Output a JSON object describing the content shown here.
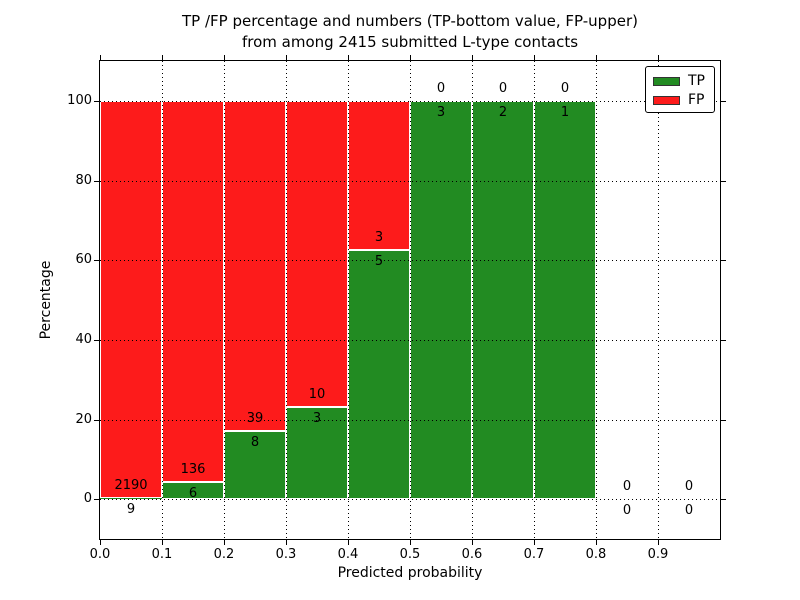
{
  "figure": {
    "title_line1": "TP /FP percentage and numbers (TP-bottom value, FP-upper)",
    "title_line2": "from among 2415 submitted L-type contacts"
  },
  "chart_data": {
    "type": "bar",
    "subtype": "stacked-percentage-histogram",
    "title": "TP /FP percentage and numbers (TP-bottom value, FP-upper) from among 2415 submitted L-type contacts",
    "xlabel": "Predicted probability",
    "ylabel": "Percentage",
    "xlim": [
      0.0,
      1.0
    ],
    "ylim": [
      -10,
      110
    ],
    "xticks": [
      0.0,
      0.1,
      0.2,
      0.3,
      0.4,
      0.5,
      0.6,
      0.7,
      0.8,
      0.9
    ],
    "xtick_labels": [
      "0.0",
      "0.1",
      "0.2",
      "0.3",
      "0.4",
      "0.5",
      "0.6",
      "0.7",
      "0.8",
      "0.9"
    ],
    "yticks": [
      0,
      20,
      40,
      60,
      80,
      100
    ],
    "ytick_labels": [
      "0",
      "20",
      "40",
      "60",
      "80",
      "100"
    ],
    "grid": "dotted",
    "bin_width": 0.1,
    "bin_starts": [
      0.0,
      0.1,
      0.2,
      0.3,
      0.4,
      0.5,
      0.6,
      0.7,
      0.8,
      0.9
    ],
    "series": [
      {
        "name": "TP",
        "color": "#228B22",
        "counts": [
          9,
          6,
          8,
          3,
          5,
          3,
          2,
          1,
          0,
          0
        ]
      },
      {
        "name": "FP",
        "color": "#FD1B1B",
        "counts": [
          2190,
          136,
          39,
          10,
          3,
          0,
          0,
          0,
          0,
          0
        ]
      }
    ],
    "tp_percent_of_bin": [
      0.4,
      4.2,
      17.0,
      23.1,
      62.5,
      100.0,
      100.0,
      100.0,
      0.0,
      0.0
    ],
    "legend": {
      "position": "upper-right",
      "entries": [
        {
          "label": "TP",
          "color": "#228B22"
        },
        {
          "label": "FP",
          "color": "#FD1B1B"
        }
      ]
    },
    "total_contacts": 2415
  }
}
